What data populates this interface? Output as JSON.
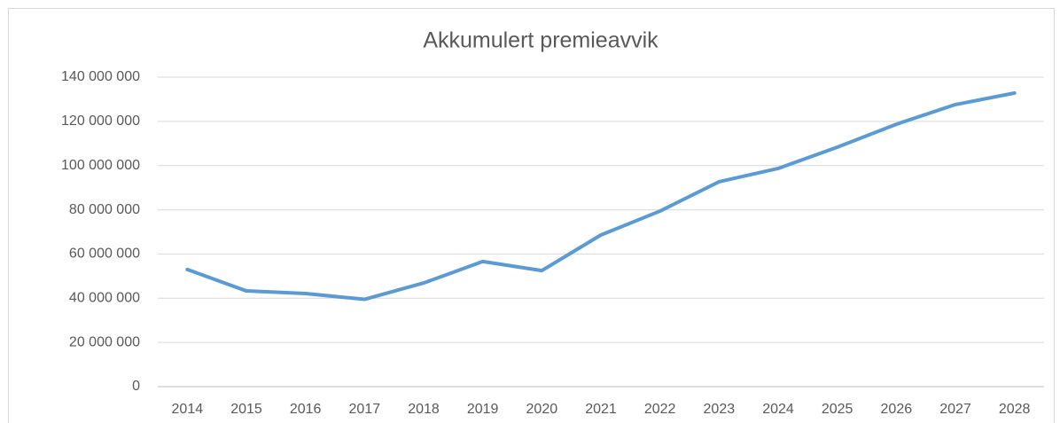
{
  "chart_data": {
    "type": "line",
    "title": "Akkumulert premieavvik",
    "categories": [
      "2014",
      "2015",
      "2016",
      "2017",
      "2018",
      "2019",
      "2020",
      "2021",
      "2022",
      "2023",
      "2024",
      "2025",
      "2026",
      "2027",
      "2028"
    ],
    "series": [
      {
        "name": "Akkumulert premieavvik",
        "color": "#5b9bd5",
        "values": [
          53000000,
          43300000,
          42100000,
          39500000,
          46900000,
          56600000,
          52500000,
          68600000,
          79400000,
          92700000,
          98700000,
          108300000,
          118700000,
          127600000,
          132800000
        ]
      }
    ],
    "ylim": [
      0,
      140000000
    ],
    "yticks": [
      0,
      {
        "value": 20000000,
        "label": "20 000 000"
      },
      {
        "value": 40000000,
        "label": "40 000 000"
      },
      {
        "value": 60000000,
        "label": "60 000 000"
      },
      {
        "value": 80000000,
        "label": "80 000 000"
      },
      {
        "value": 100000000,
        "label": "100 000 000"
      },
      {
        "value": 120000000,
        "label": "120 000 000"
      },
      {
        "value": 140000000,
        "label": "140 000 000"
      }
    ],
    "grid": true
  }
}
